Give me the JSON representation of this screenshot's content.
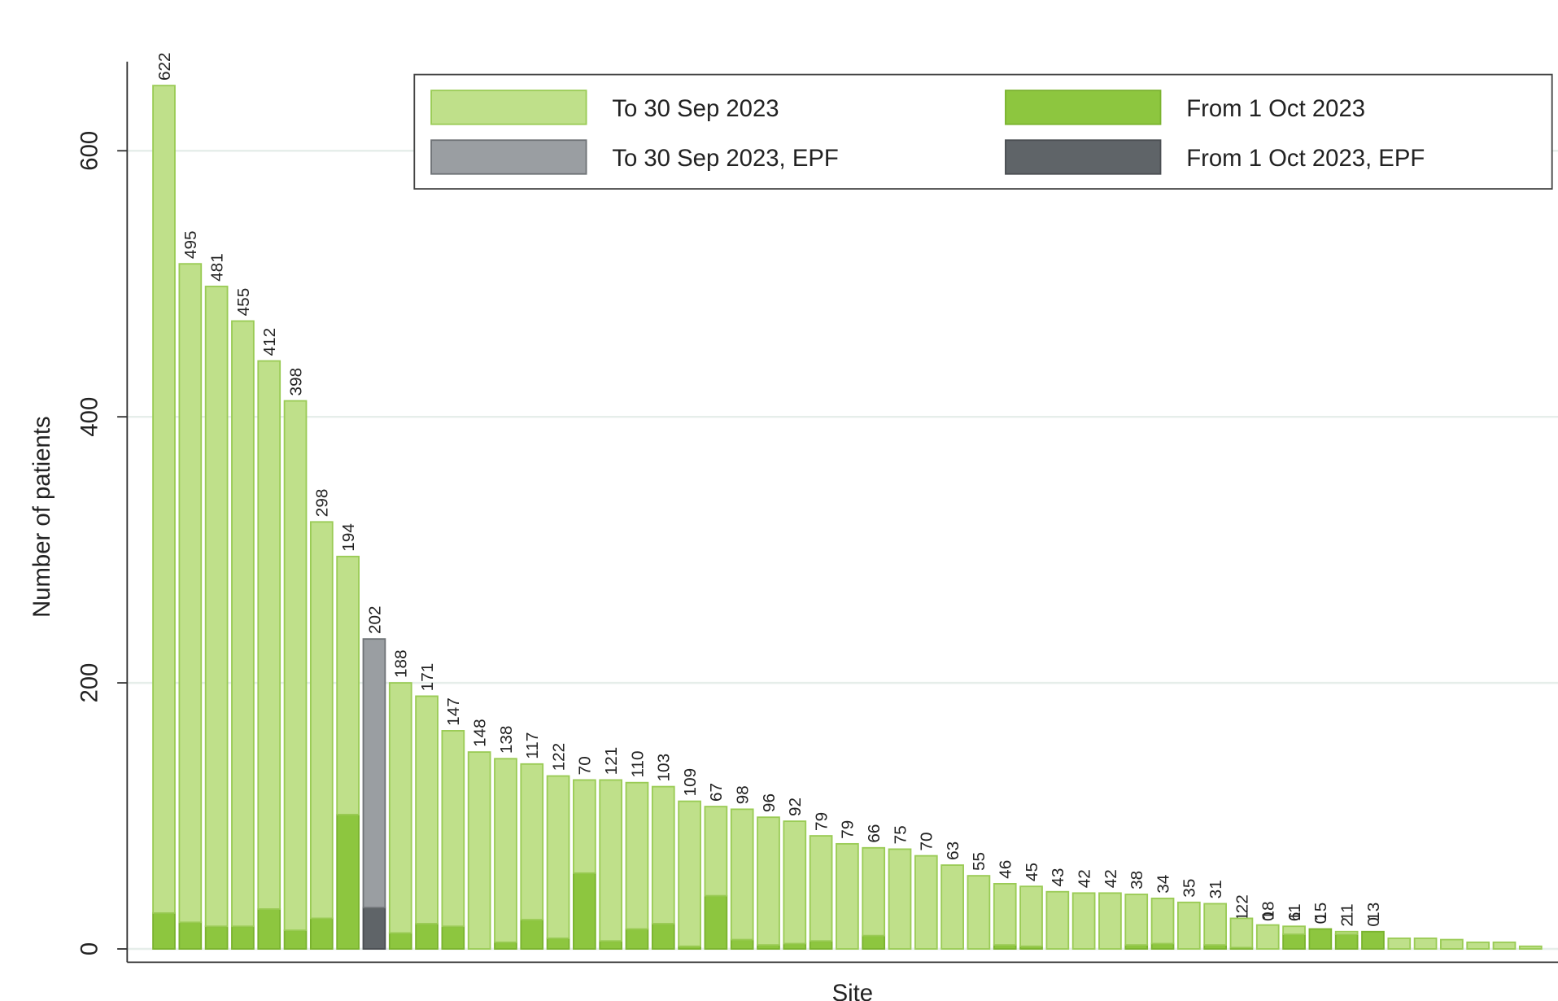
{
  "chart_data": {
    "type": "stacked_bar",
    "xlabel": "Site",
    "ylabel": "Number of patients",
    "categories": [
      null,
      null,
      null,
      null,
      null,
      null,
      null,
      null,
      null,
      null,
      null,
      null,
      null,
      null,
      null,
      null,
      null,
      null,
      null,
      null,
      null,
      null,
      null,
      null,
      null,
      null,
      null,
      null,
      null,
      null,
      null,
      null,
      null,
      null,
      null,
      null,
      null,
      null,
      null,
      null,
      null,
      null,
      null,
      null,
      null,
      null,
      null,
      null,
      null,
      null,
      null,
      null,
      null
    ],
    "series": [
      {
        "name": "To 30 Sep 2023",
        "color": "#bfe08a",
        "edge": "#9acb55",
        "values": [
          622,
          495,
          481,
          455,
          412,
          398,
          298,
          194,
          null,
          188,
          171,
          147,
          148,
          138,
          117,
          122,
          70,
          121,
          110,
          103,
          109,
          67,
          98,
          96,
          92,
          79,
          79,
          66,
          75,
          70,
          63,
          55,
          46,
          45,
          43,
          42,
          42,
          38,
          34,
          35,
          31,
          22,
          18,
          6,
          0,
          2,
          0,
          8,
          8,
          7,
          5,
          5,
          2
        ],
        "value_labels": [
          "622",
          "495",
          "481",
          "455",
          "412",
          "398",
          "298",
          "194",
          null,
          "188",
          "171",
          "147",
          "148",
          "138",
          "117",
          "122",
          "70",
          "121",
          "110",
          "103",
          "109",
          "67",
          "98",
          "96",
          "92",
          "79",
          "79",
          "66",
          "75",
          "70",
          "63",
          "55",
          "46",
          "45",
          "43",
          "42",
          "42",
          "38",
          "34",
          "35",
          "31",
          "22",
          "18",
          "6",
          "0",
          "2",
          "0",
          null,
          null,
          null,
          null,
          null,
          null
        ]
      },
      {
        "name": "From 1 Oct 2023",
        "color": "#8dc63f",
        "edge": "#7ab32e",
        "values": [
          27,
          20,
          17,
          17,
          30,
          14,
          23,
          101,
          null,
          12,
          19,
          17,
          0,
          5,
          22,
          8,
          57,
          6,
          15,
          19,
          2,
          40,
          7,
          3,
          4,
          6,
          0,
          10,
          0,
          0,
          0,
          0,
          3,
          2,
          0,
          0,
          0,
          3,
          4,
          0,
          3,
          1,
          0,
          11,
          15,
          11,
          13,
          0,
          0,
          0,
          0,
          0,
          0
        ],
        "value_labels": [
          "27",
          "20",
          "17",
          "17",
          "30",
          "14",
          "23",
          "101",
          null,
          "12",
          "19",
          "17",
          "0",
          "5",
          "22",
          "8",
          "57",
          "6",
          "15",
          "19",
          "2",
          "40",
          "7",
          "3",
          "4",
          "6",
          "0",
          "10",
          "0",
          "0",
          "0",
          "0",
          "3",
          "2",
          "0",
          "0",
          "0",
          "3",
          "4",
          "0",
          "3",
          "1",
          "0",
          "11",
          "15",
          "11",
          "13",
          null,
          null,
          null,
          null,
          null,
          null
        ]
      },
      {
        "name": "To 30 Sep 2023, EPF",
        "color": "#9a9ea2",
        "edge": "#6f7377",
        "values": [
          null,
          null,
          null,
          null,
          null,
          null,
          null,
          null,
          202,
          null,
          null,
          null,
          null,
          null,
          null,
          null,
          null,
          null,
          null,
          null,
          null,
          null,
          null,
          null,
          null,
          null,
          null,
          null,
          null,
          null,
          null,
          null,
          null,
          null,
          null,
          null,
          null,
          null,
          null,
          null,
          null,
          null,
          null,
          null,
          null,
          null,
          null,
          null,
          null,
          null,
          null,
          null,
          null
        ],
        "value_labels": [
          null,
          null,
          null,
          null,
          null,
          null,
          null,
          null,
          "202",
          null,
          null,
          null,
          null,
          null,
          null,
          null,
          null,
          null,
          null,
          null,
          null,
          null,
          null,
          null,
          null,
          null,
          null,
          null,
          null,
          null,
          null,
          null,
          null,
          null,
          null,
          null,
          null,
          null,
          null,
          null,
          null,
          null,
          null,
          null,
          null,
          null,
          null,
          null,
          null,
          null,
          null,
          null,
          null
        ]
      },
      {
        "name": "From 1 Oct 2023, EPF",
        "color": "#5f6468",
        "edge": "#4a4e52",
        "values": [
          null,
          null,
          null,
          null,
          null,
          null,
          null,
          null,
          31,
          null,
          null,
          null,
          null,
          null,
          null,
          null,
          null,
          null,
          null,
          null,
          null,
          null,
          null,
          null,
          null,
          null,
          null,
          null,
          null,
          null,
          null,
          null,
          null,
          null,
          null,
          null,
          null,
          null,
          null,
          null,
          null,
          null,
          null,
          null,
          null,
          null,
          null,
          null,
          null,
          null,
          null,
          null,
          null
        ],
        "value_labels": [
          null,
          null,
          null,
          null,
          null,
          null,
          null,
          null,
          "31",
          null,
          null,
          null,
          null,
          null,
          null,
          null,
          null,
          null,
          null,
          null,
          null,
          null,
          null,
          null,
          null,
          null,
          null,
          null,
          null,
          null,
          null,
          null,
          null,
          null,
          null,
          null,
          null,
          null,
          null,
          null,
          null,
          null,
          null,
          null,
          null,
          null,
          null,
          null,
          null,
          null,
          null,
          null,
          null
        ]
      }
    ],
    "ylim": [
      -10,
      667
    ],
    "yticks": [
      0,
      200,
      400,
      600
    ],
    "grid": true,
    "legend": "top-right"
  }
}
